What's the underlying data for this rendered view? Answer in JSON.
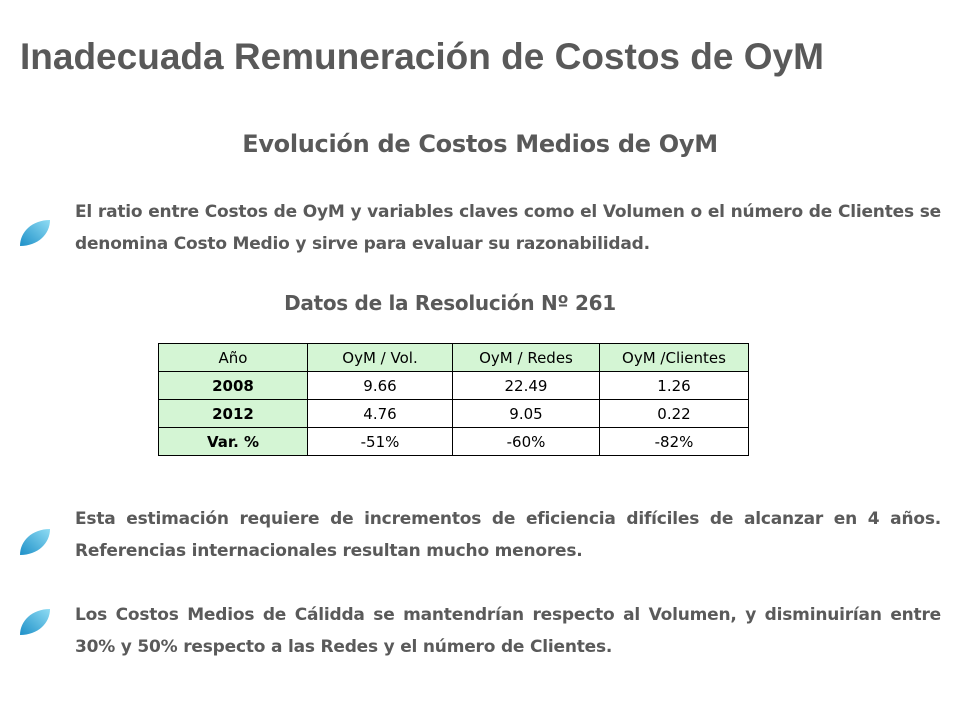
{
  "slide": {
    "title": "Inadecuada Remuneración de Costos de OyM",
    "subtitle": "Evolución de Costos Medios de OyM",
    "bullets": [
      "El ratio entre Costos de OyM y variables claves como el Volumen o el número de Clientes se denomina Costo Medio y sirve para evaluar su razonabilidad.",
      "Esta estimación requiere de incrementos de eficiencia difíciles de alcanzar en 4 años. Referencias internacionales resultan mucho menores.",
      "Los Costos Medios de Cálidda se mantendrían respecto al Volumen, y disminuirían entre 30% y 50% respecto a las Redes y el número de Clientes."
    ],
    "table_title": "Datos de la Resolución Nº 261",
    "table": {
      "headers": [
        "Año",
        "OyM / Vol.",
        "OyM / Redes",
        "OyM /Clientes"
      ],
      "rows": [
        [
          "2008",
          "9.66",
          "22.49",
          "1.26"
        ],
        [
          "2012",
          "4.76",
          "9.05",
          "0.22"
        ],
        [
          "Var. %",
          "-51%",
          "-60%",
          "-82%"
        ]
      ]
    },
    "bullet_icon": "leaf-icon",
    "colors": {
      "leaf_light": "#7fd3f0",
      "leaf_dark": "#1e90c8",
      "header_fill": "#d4f5d4",
      "text": "#595959"
    }
  }
}
